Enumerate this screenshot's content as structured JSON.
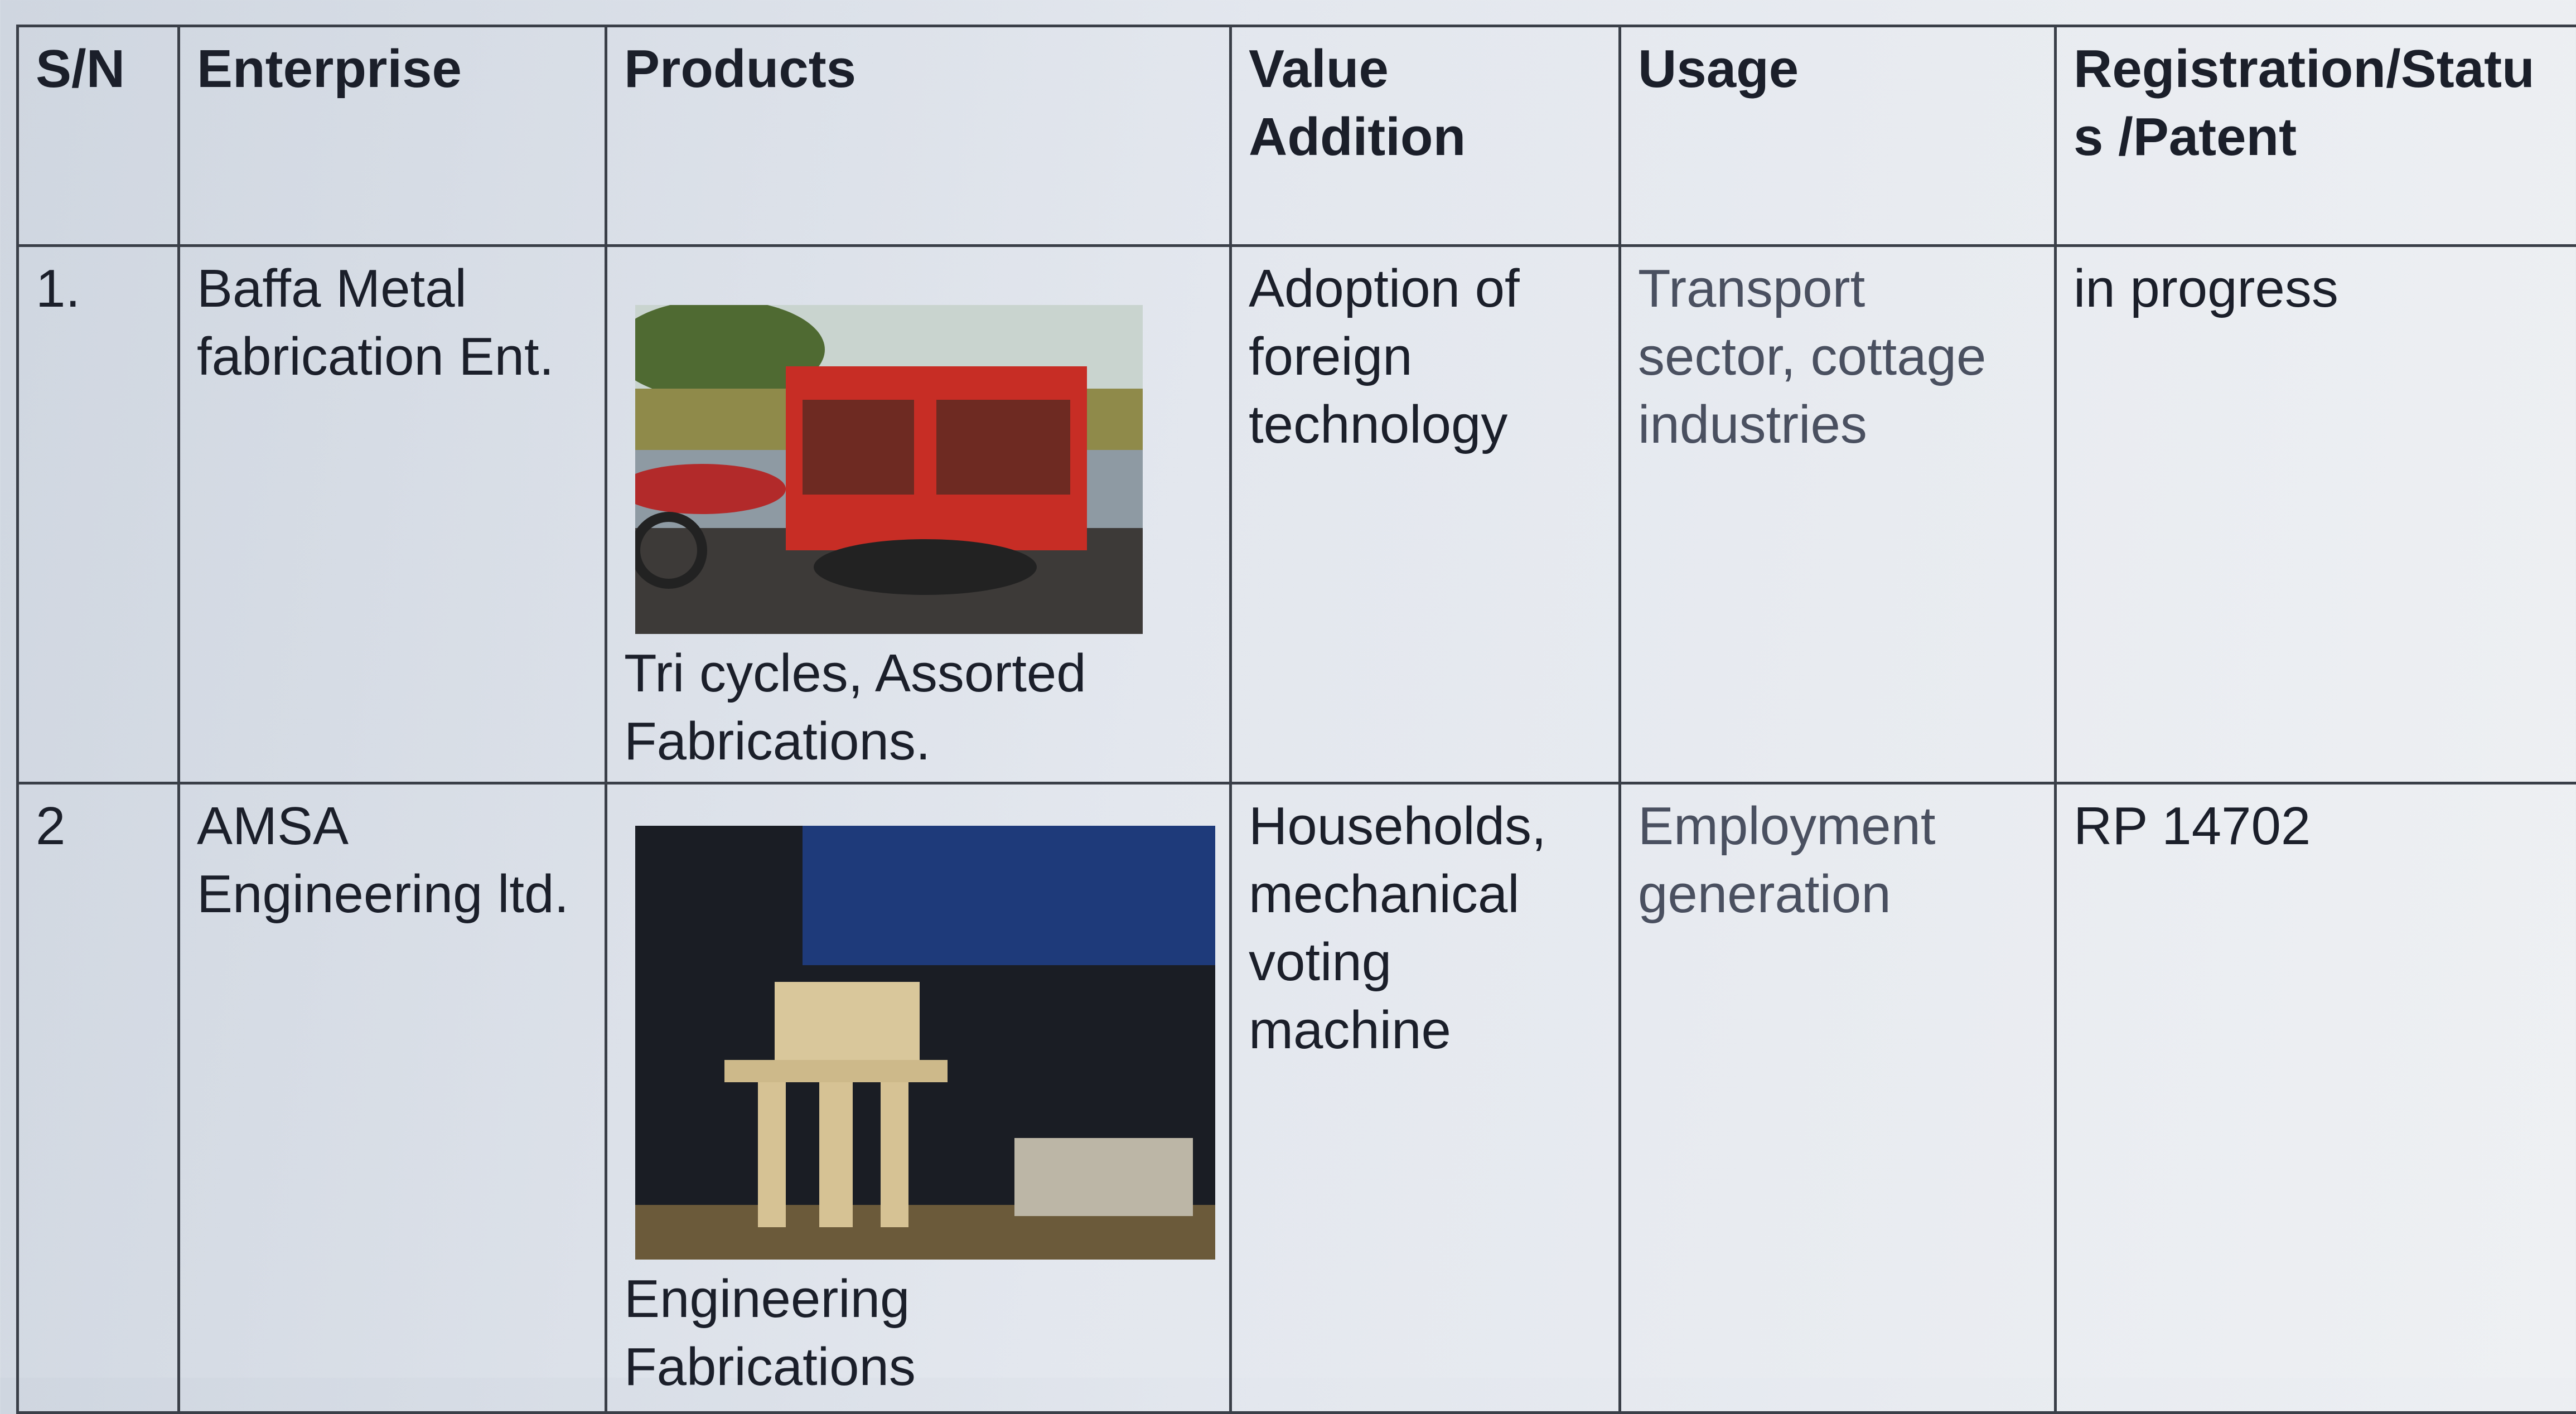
{
  "table": {
    "headers": [
      "S/N",
      "Enterprise",
      "Products",
      "Value Addition",
      "Usage",
      "Registration/Status /Patent"
    ],
    "rows": [
      [
        "1.",
        "Baffa Metal fabrication Ent.",
        "Tri cycles, Assorted Fabrications.",
        "Adoption of foreign technology",
        "Transport sector, cottage industries",
        "in progress"
      ],
      [
        "2",
        "AMSA Engineering ltd.",
        "Engineering Fabrications",
        "Households, mechanical voting machine",
        "Employment generation",
        "RP 14702"
      ]
    ]
  }
}
